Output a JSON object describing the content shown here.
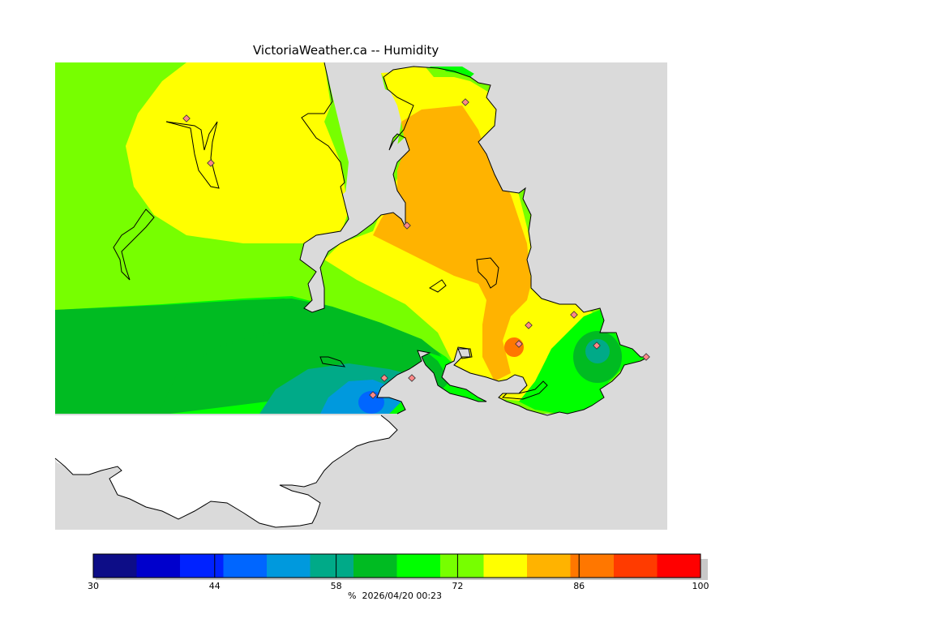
{
  "title": "VictoriaWeather.ca -- Humidity",
  "colorbar": {
    "unit": "%",
    "timestamp": "2026/04/20 00:23",
    "min": 30,
    "max": 100,
    "step": 5,
    "ticks": [
      "30",
      "44",
      "58",
      "72",
      "86",
      "100"
    ],
    "colors": [
      "#0d0d87",
      "#0000cc",
      "#0022ff",
      "#0066ff",
      "#0099dd",
      "#00aa88",
      "#00bb22",
      "#00ff00",
      "#77ff00",
      "#ffff00",
      "#ffb300",
      "#ff7700",
      "#ff3b00",
      "#ff0000"
    ]
  },
  "map": {
    "land_color": "#dadada",
    "water_outside_color": "#ffffff",
    "station_count": 12
  }
}
